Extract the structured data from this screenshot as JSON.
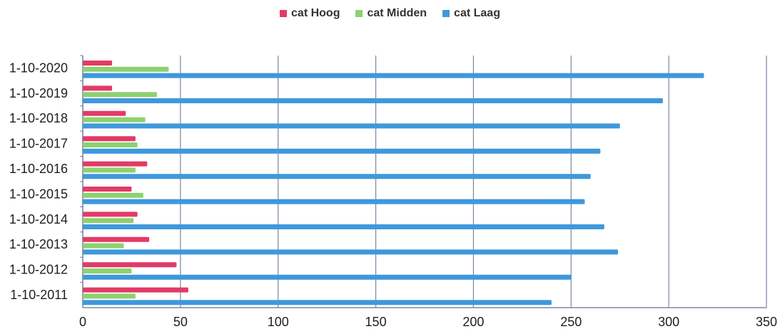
{
  "legend": {
    "items": [
      {
        "label": "cat Hoog",
        "color": "#e33a67"
      },
      {
        "label": "cat Midden",
        "color": "#8ed16f"
      },
      {
        "label": "cat Laag",
        "color": "#3f98db"
      }
    ]
  },
  "chart_data": {
    "type": "bar",
    "orientation": "horizontal",
    "categories": [
      "1-10-2020",
      "1-10-2019",
      "1-10-2018",
      "1-10-2017",
      "1-10-2016",
      "1-10-2015",
      "1-10-2014",
      "1-10-2013",
      "1-10-2012",
      "1-10-2011"
    ],
    "series": [
      {
        "name": "cat Hoog",
        "color": "#e33a67",
        "values": [
          15,
          15,
          22,
          27,
          33,
          25,
          28,
          34,
          48,
          54
        ]
      },
      {
        "name": "cat Midden",
        "color": "#8ed16f",
        "values": [
          44,
          38,
          32,
          28,
          27,
          31,
          26,
          21,
          25,
          27
        ]
      },
      {
        "name": "cat Laag",
        "color": "#3f98db",
        "values": [
          318,
          297,
          275,
          265,
          260,
          257,
          267,
          274,
          250,
          240
        ]
      }
    ],
    "xlim": [
      0,
      350
    ],
    "xticks": [
      0,
      50,
      100,
      150,
      200,
      250,
      300,
      350
    ],
    "grid": true,
    "legend_position": "top"
  }
}
